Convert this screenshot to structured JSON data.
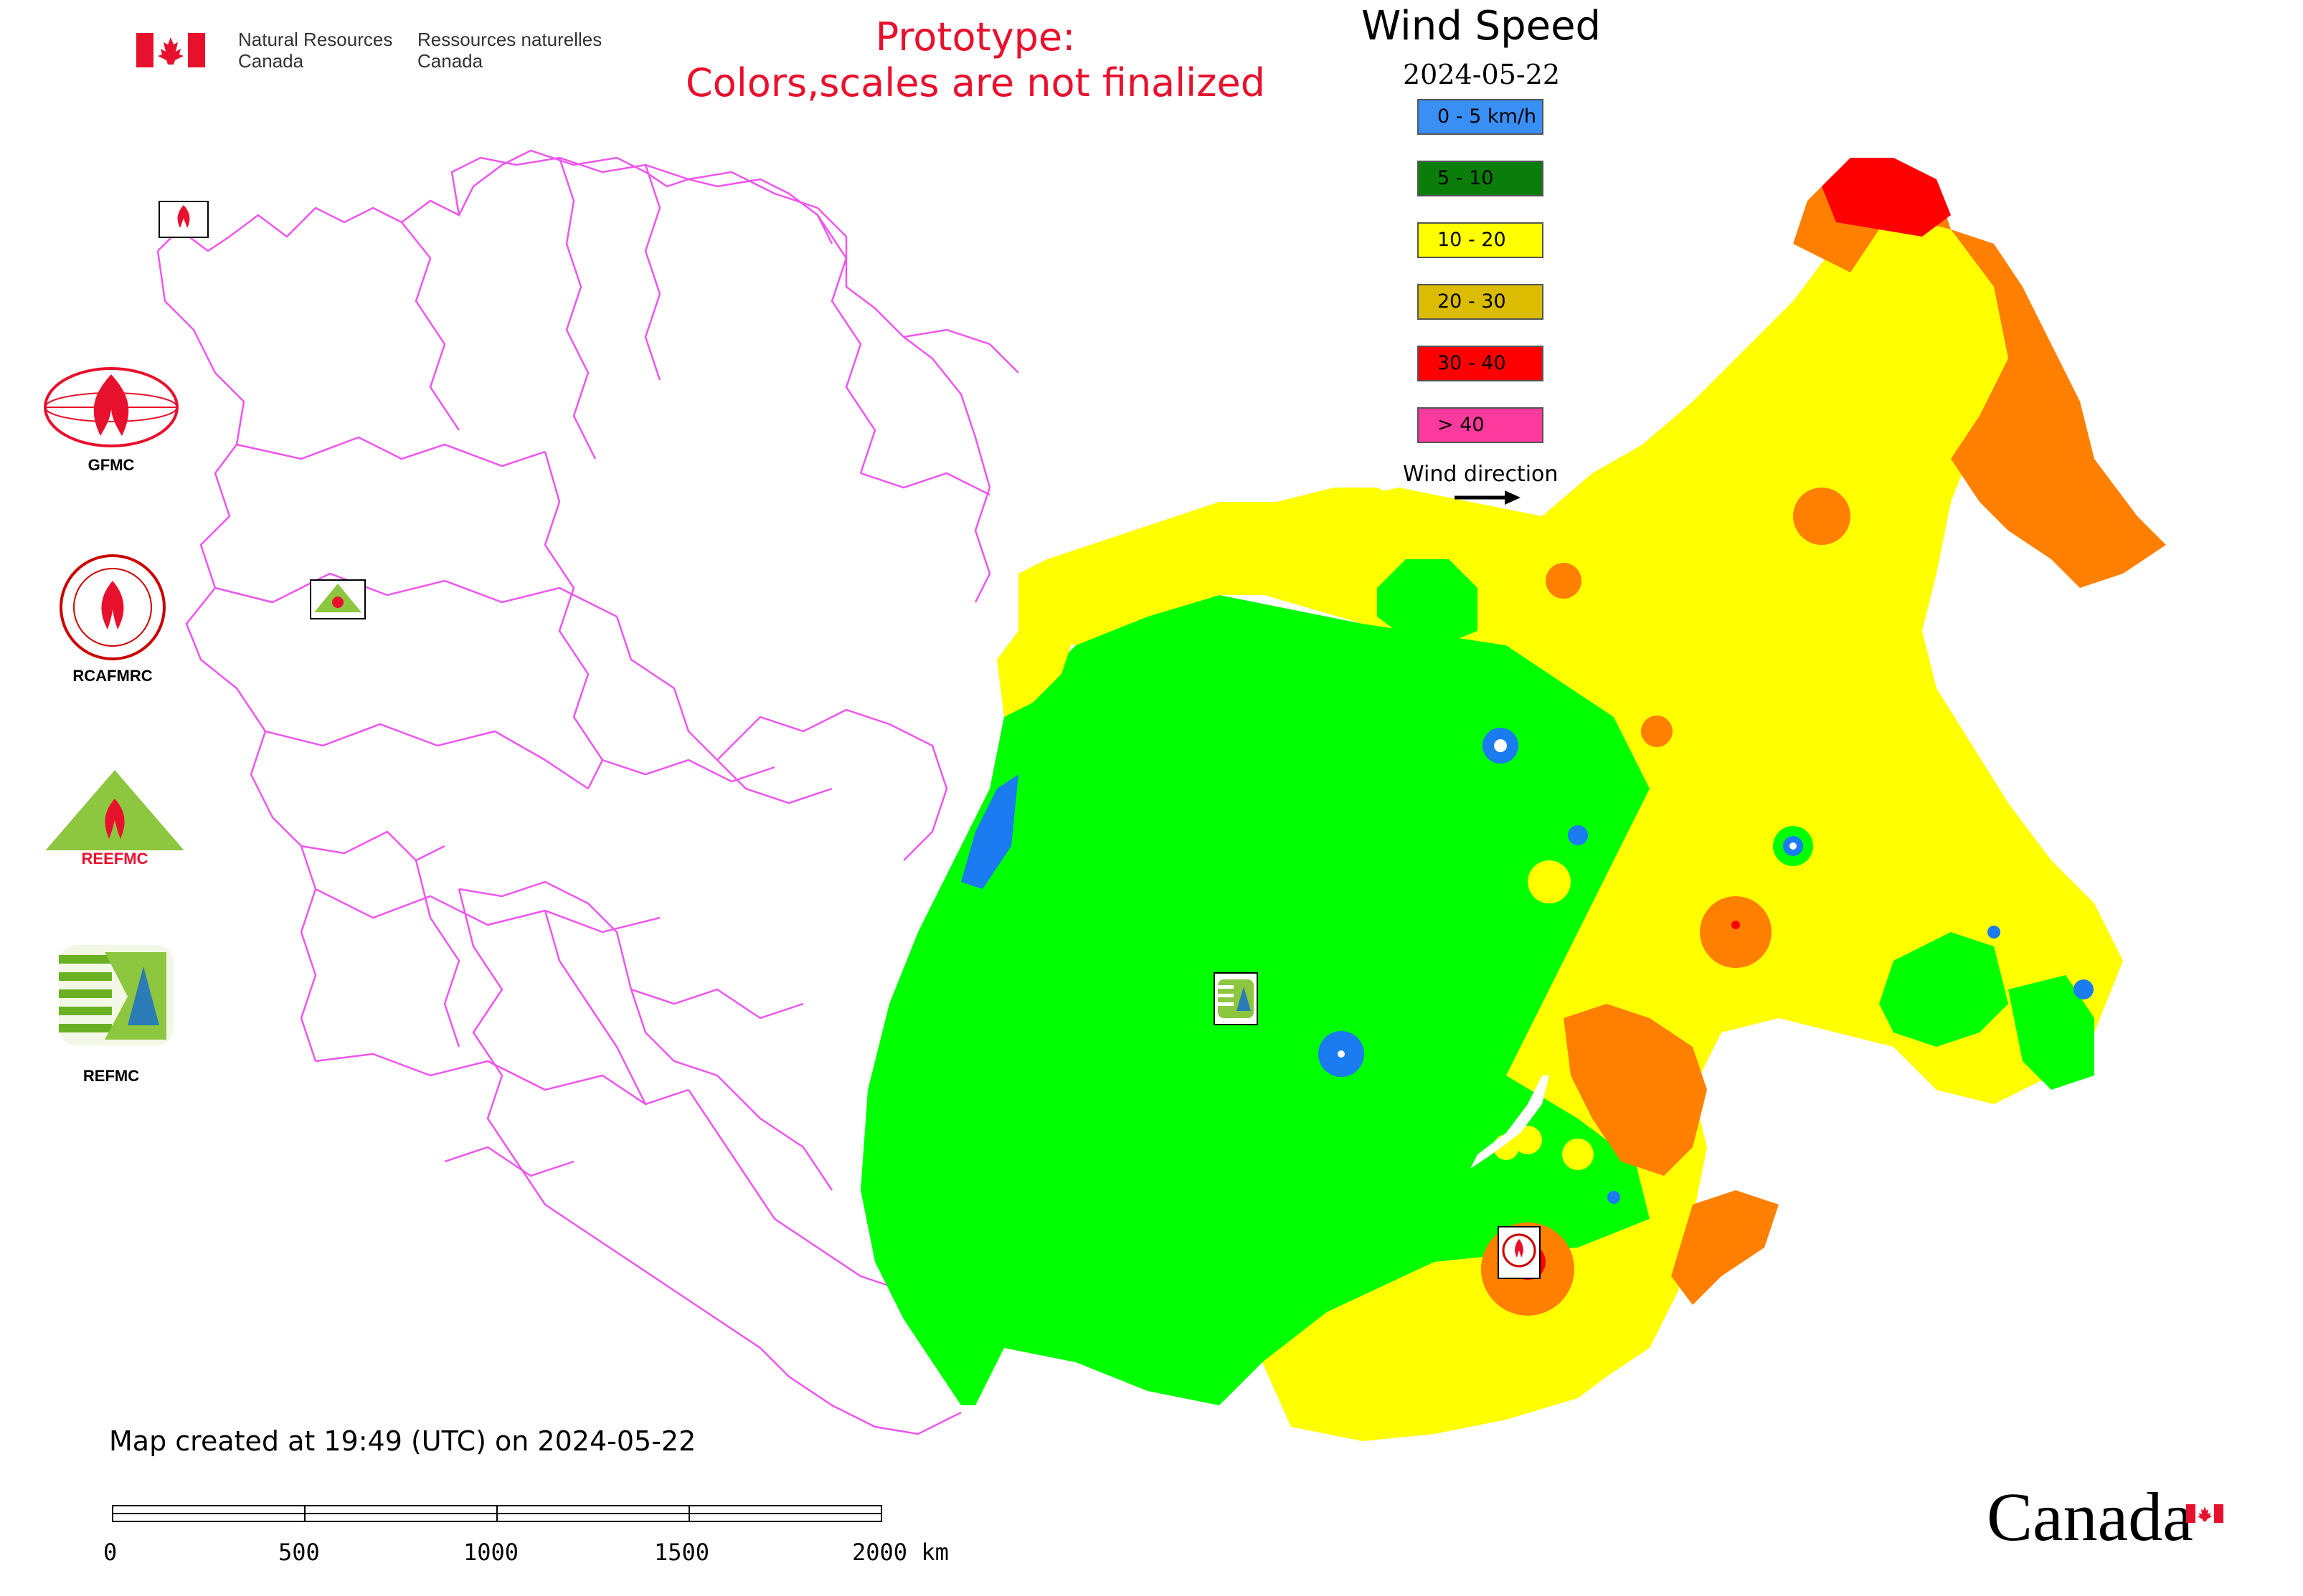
{
  "header": {
    "agency_en": "Natural Resources\nCanada",
    "agency_fr": "Ressources naturelles\nCanada",
    "prototype_line1": "Prototype:",
    "prototype_line2": "Colors,scales are not finalized"
  },
  "legend": {
    "title": "Wind Speed",
    "date": "2024-05-22",
    "items": [
      {
        "label": "0 - 5 km/h",
        "color": "#3a8ff5"
      },
      {
        "label": "5 - 10",
        "color": "#0a7d0a"
      },
      {
        "label": "10 - 20",
        "color": "#ffff00"
      },
      {
        "label": "20 - 30",
        "color": "#dcbc00"
      },
      {
        "label": "30 - 40",
        "color": "#ff0000"
      },
      {
        "label": "> 40",
        "color": "#ff3a9e"
      }
    ],
    "wind_direction_label": "Wind direction"
  },
  "colors": {
    "bright_green": "#00ff00",
    "yellow": "#ffff00",
    "orange": "#ff8000",
    "red": "#ff0000",
    "blue": "#1a7cf0",
    "borders": "#ee55ee",
    "canada_red": "#e8112d"
  },
  "side_logos": [
    {
      "name": "GFMC",
      "icon": "gfmc-flame-globe-icon"
    },
    {
      "name": "RCAFMRC",
      "icon": "rcafmrc-seal-icon"
    },
    {
      "name": "REEFMC",
      "icon": "reefmc-triangle-icon"
    },
    {
      "name": "REFMC",
      "icon": "refmc-sigma-icon"
    }
  ],
  "map_markers": [
    {
      "label": "GFMC",
      "icon": "gfmc-marker-icon"
    },
    {
      "label": "REEFMC",
      "icon": "reefmc-marker-icon"
    },
    {
      "label": "REFMC",
      "icon": "refmc-marker-icon"
    },
    {
      "label": "RCAFMRC",
      "icon": "rcafmrc-marker-icon"
    }
  ],
  "footer": {
    "created_text": "Map created at 19:49 (UTC) on 2024-05-22",
    "scale_labels": [
      "0",
      "500",
      "1000",
      "1500",
      "2000 km"
    ],
    "wordmark": "Canada"
  }
}
